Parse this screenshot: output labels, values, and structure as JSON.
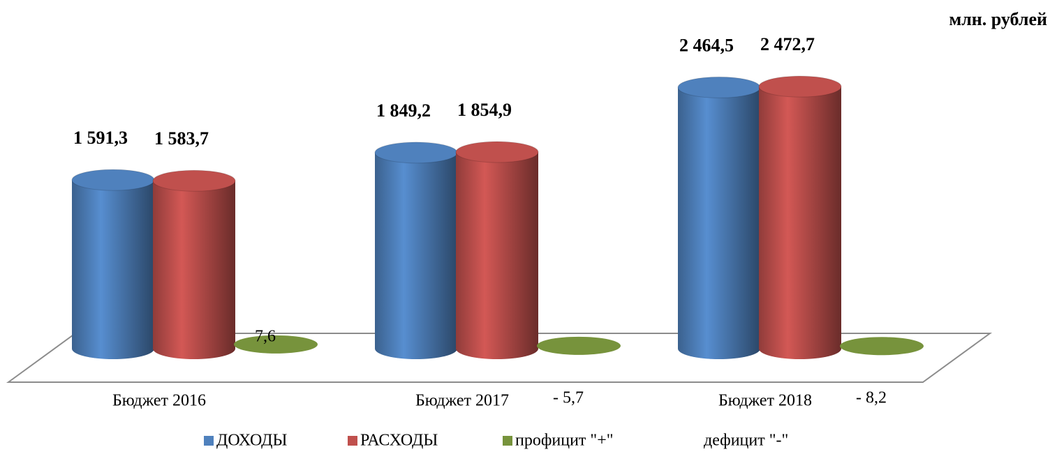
{
  "chart_data": {
    "type": "bar3d",
    "unit_label": "млн. рублей",
    "categories": [
      "Бюджет 2016",
      "Бюджет 2017",
      "Бюджет 2018"
    ],
    "series": [
      {
        "name": "ДОХОДЫ",
        "color": "#4f81bd",
        "values": [
          1591.3,
          1849.2,
          2464.5
        ],
        "value_labels": [
          "1 591,3",
          "1 849,2",
          "2 464,5"
        ]
      },
      {
        "name": "РАСХОДЫ",
        "color": "#c0504d",
        "values": [
          1583.7,
          1854.9,
          2472.7
        ],
        "value_labels": [
          "1 583,7",
          "1 854,9",
          "2 472,7"
        ]
      },
      {
        "name": "профицит \"+\"",
        "color": "#77933c",
        "values": [
          7.6,
          -5.7,
          -8.2
        ],
        "value_labels": [
          "7,6",
          "- 5,7",
          "- 8,2"
        ]
      },
      {
        "name": "дефицит \"-\"",
        "color": null,
        "values": [
          null,
          null,
          null
        ]
      }
    ]
  }
}
